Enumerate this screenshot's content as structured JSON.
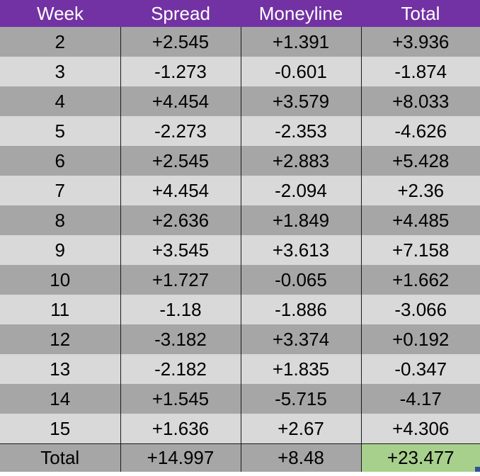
{
  "headers": [
    "Week",
    "Spread",
    "Moneyline",
    "Total"
  ],
  "rows": [
    [
      "2",
      "+2.545",
      "+1.391",
      "+3.936"
    ],
    [
      "3",
      "-1.273",
      "-0.601",
      "-1.874"
    ],
    [
      "4",
      "+4.454",
      "+3.579",
      "+8.033"
    ],
    [
      "5",
      "-2.273",
      "-2.353",
      "-4.626"
    ],
    [
      "6",
      "+2.545",
      "+2.883",
      "+5.428"
    ],
    [
      "7",
      "+4.454",
      "-2.094",
      "+2.36"
    ],
    [
      "8",
      "+2.636",
      "+1.849",
      "+4.485"
    ],
    [
      "9",
      "+3.545",
      "+3.613",
      "+7.158"
    ],
    [
      "10",
      "+1.727",
      "-0.065",
      "+1.662"
    ],
    [
      "11",
      "-1.18",
      "-1.886",
      "-3.066"
    ],
    [
      "12",
      "-3.182",
      "+3.374",
      "+0.192"
    ],
    [
      "13",
      "-2.182",
      "+1.835",
      "-0.347"
    ],
    [
      "14",
      "+1.545",
      "-5.715",
      "-4.17"
    ],
    [
      "15",
      "+1.636",
      "+2.67",
      "+4.306"
    ]
  ],
  "totals": [
    "Total",
    "+14.997",
    "+8.48",
    "+23.477"
  ],
  "colors": {
    "header_bg": "#7232a3",
    "row_dark": "#a6a6a6",
    "row_light": "#d9d9d9",
    "grand_total_bg": "#a8d08d"
  }
}
